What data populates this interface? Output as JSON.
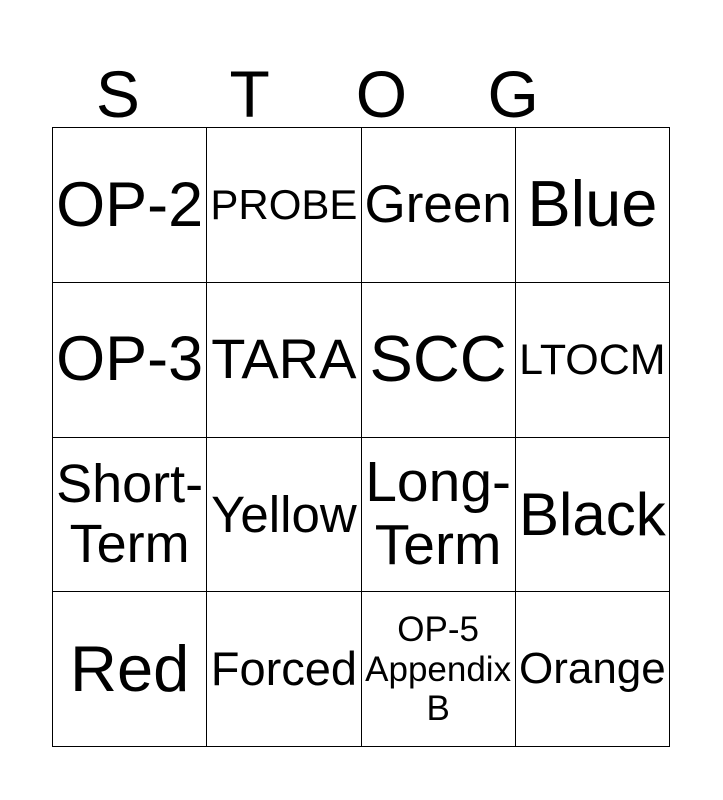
{
  "title": {
    "letters": [
      "S",
      "T",
      "O",
      "G"
    ]
  },
  "grid": {
    "rows": [
      [
        "OP-2",
        "PROBE",
        "Green",
        "Blue"
      ],
      [
        "OP-3",
        "TARA",
        "SCC",
        "LTOCM"
      ],
      [
        "Short-\nTerm",
        "Yellow",
        "Long-\nTerm",
        "Black"
      ],
      [
        "Red",
        "Forced",
        "OP-5\nAppendix\nB",
        "Orange"
      ]
    ]
  },
  "colors": {
    "grid_line": "#000000",
    "text": "#000000",
    "background": "#ffffff"
  }
}
